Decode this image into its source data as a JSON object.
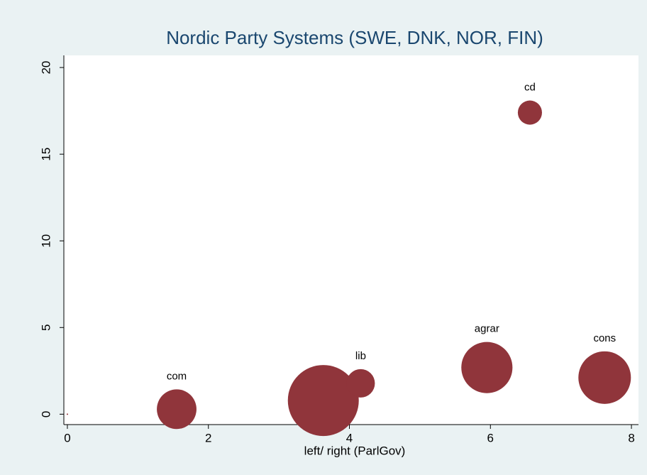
{
  "chart_data": {
    "type": "bubble",
    "title": "Nordic Party Systems (SWE, DNK, NOR, FIN)",
    "x_label": "left/ right (ParlGov)",
    "xlim": [
      -0.05,
      8.1
    ],
    "ylim": [
      -0.6,
      20.7
    ],
    "xticks": [
      0,
      2,
      4,
      6,
      8
    ],
    "yticks": [
      0,
      5,
      10,
      15,
      20
    ],
    "color": "#90353b",
    "x": [
      0,
      1.55,
      3.63,
      4.16,
      5.95,
      7.62,
      6.56
    ],
    "values": [
      0,
      0.29,
      0.79,
      1.78,
      2.69,
      2.11,
      17.4
    ],
    "sizes": [
      0.01,
      7.8,
      25,
      4,
      13,
      13.7,
      2.9
    ],
    "labels": [
      null,
      "com",
      null,
      "lib",
      "agrar",
      "cons",
      "cd"
    ]
  }
}
